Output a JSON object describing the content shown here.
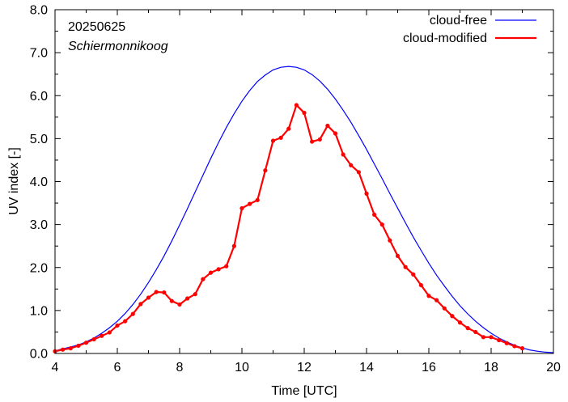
{
  "chart_data": {
    "type": "line",
    "date_label": "20250625",
    "location_label": "Schiermonnikoog",
    "xlabel": "Time  [UTC]",
    "ylabel": "UV index  [-]",
    "xlim": [
      4,
      20
    ],
    "ylim": [
      0,
      8
    ],
    "xticks": [
      "4",
      "6",
      "8",
      "10",
      "12",
      "14",
      "16",
      "18",
      "20"
    ],
    "yticks": [
      "0.0",
      "1.0",
      "2.0",
      "3.0",
      "4.0",
      "5.0",
      "6.0",
      "7.0",
      "8.0"
    ],
    "legend_position": "top-right",
    "grid": false,
    "series": [
      {
        "name": "cloud-free",
        "color": "#0000ff",
        "style": "line",
        "peak_x": 11.6,
        "peak_y": 6.68,
        "x": [
          4.0,
          4.25,
          4.5,
          4.75,
          5.0,
          5.25,
          5.5,
          5.75,
          6.0,
          6.25,
          6.5,
          6.75,
          7.0,
          7.25,
          7.5,
          7.75,
          8.0,
          8.25,
          8.5,
          8.75,
          9.0,
          9.25,
          9.5,
          9.75,
          10.0,
          10.25,
          10.5,
          10.75,
          11.0,
          11.25,
          11.5,
          11.75,
          12.0,
          12.25,
          12.5,
          12.75,
          13.0,
          13.25,
          13.5,
          13.75,
          14.0,
          14.25,
          14.5,
          14.75,
          15.0,
          15.25,
          15.5,
          15.75,
          16.0,
          16.25,
          16.5,
          16.75,
          17.0,
          17.25,
          17.5,
          17.75,
          18.0,
          18.25,
          18.5,
          18.75,
          19.0,
          19.25,
          19.5,
          19.75,
          20.0
        ],
        "values": [
          0.06,
          0.11,
          0.15,
          0.2,
          0.27,
          0.36,
          0.47,
          0.6,
          0.75,
          0.93,
          1.14,
          1.38,
          1.65,
          1.95,
          2.27,
          2.62,
          2.99,
          3.37,
          3.76,
          4.15,
          4.54,
          4.91,
          5.26,
          5.58,
          5.87,
          6.12,
          6.33,
          6.48,
          6.6,
          6.66,
          6.68,
          6.66,
          6.6,
          6.49,
          6.34,
          6.15,
          5.92,
          5.66,
          5.38,
          5.07,
          4.75,
          4.41,
          4.07,
          3.72,
          3.38,
          3.04,
          2.71,
          2.4,
          2.1,
          1.82,
          1.57,
          1.33,
          1.11,
          0.92,
          0.75,
          0.6,
          0.47,
          0.36,
          0.27,
          0.19,
          0.13,
          0.08,
          0.05,
          0.03,
          0.02
        ]
      },
      {
        "name": "cloud-modified",
        "color": "#ff0000",
        "style": "line-points",
        "x": [
          4.0,
          4.25,
          4.5,
          4.75,
          5.0,
          5.25,
          5.5,
          5.75,
          6.0,
          6.25,
          6.5,
          6.75,
          7.0,
          7.25,
          7.5,
          7.75,
          8.0,
          8.25,
          8.5,
          8.75,
          9.0,
          9.25,
          9.5,
          9.75,
          10.0,
          10.25,
          10.5,
          10.75,
          11.0,
          11.25,
          11.5,
          11.75,
          12.0,
          12.25,
          12.5,
          12.75,
          13.0,
          13.25,
          13.5,
          13.75,
          14.0,
          14.25,
          14.5,
          14.75,
          15.0,
          15.25,
          15.5,
          15.75,
          16.0,
          16.25,
          16.5,
          16.75,
          17.0,
          17.25,
          17.5,
          17.75,
          18.0,
          18.25,
          18.5,
          18.75,
          19.0
        ],
        "values": [
          0.05,
          0.09,
          0.12,
          0.18,
          0.25,
          0.33,
          0.41,
          0.49,
          0.65,
          0.75,
          0.92,
          1.15,
          1.3,
          1.43,
          1.42,
          1.22,
          1.14,
          1.28,
          1.38,
          1.73,
          1.88,
          1.96,
          2.03,
          2.5,
          3.38,
          3.48,
          3.57,
          4.26,
          4.95,
          5.02,
          5.23,
          5.78,
          5.6,
          4.93,
          4.98,
          5.3,
          5.12,
          4.63,
          4.38,
          4.22,
          3.72,
          3.23,
          3.0,
          2.63,
          2.27,
          2.01,
          1.84,
          1.59,
          1.34,
          1.24,
          1.05,
          0.87,
          0.72,
          0.59,
          0.5,
          0.38,
          0.38,
          0.31,
          0.24,
          0.17,
          0.12
        ]
      }
    ]
  }
}
